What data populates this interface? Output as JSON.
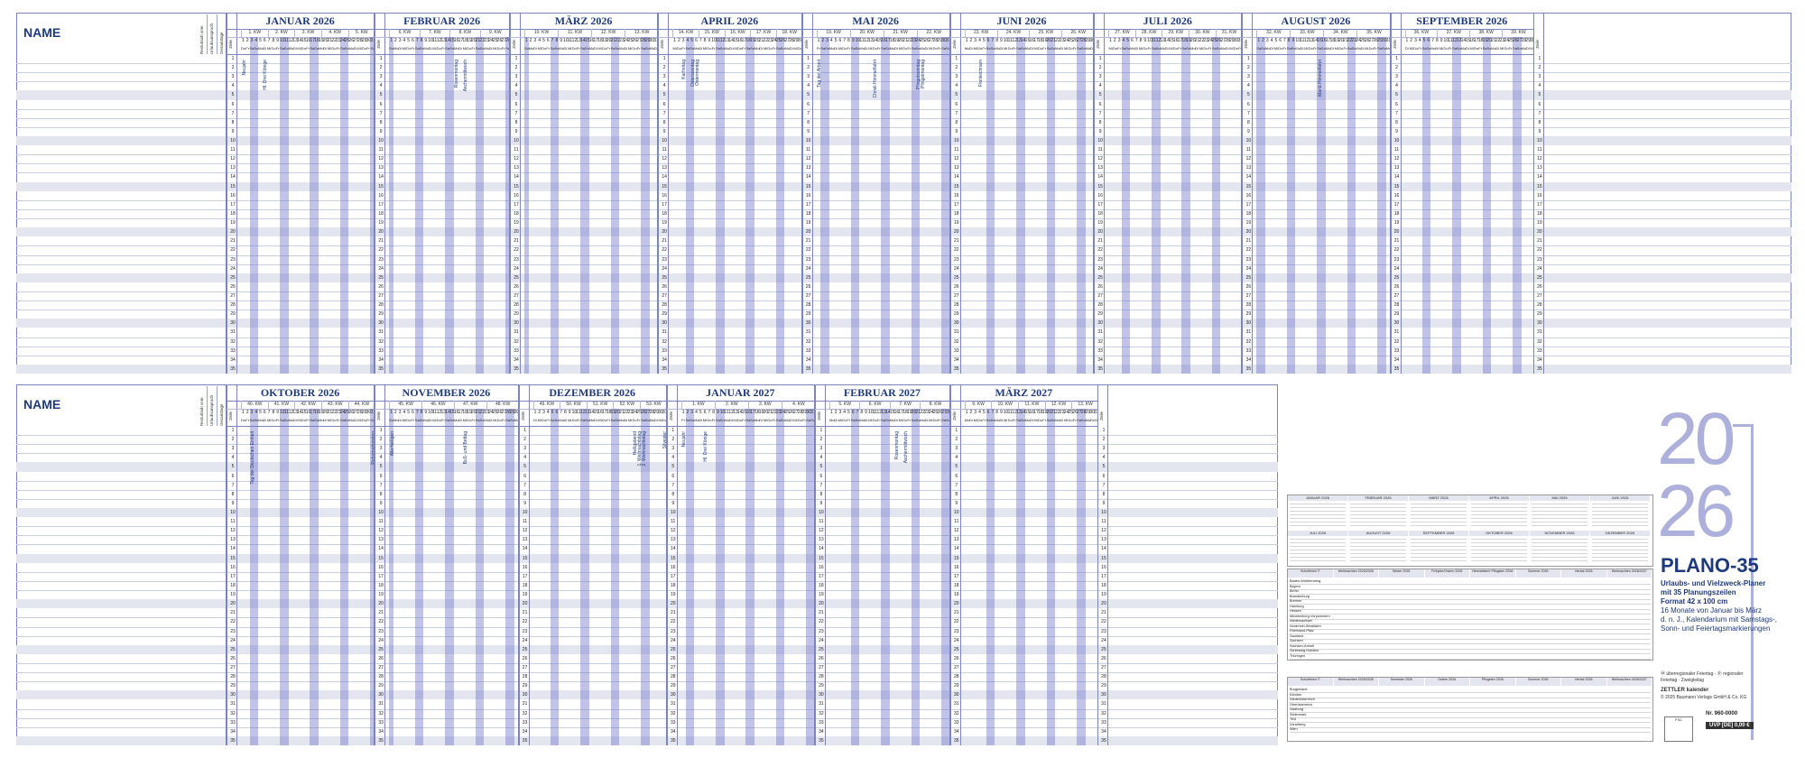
{
  "name_heading": "NAME",
  "side_labels": [
    "Resturlaub vom Vorjahr",
    "Urlaubsanspruch",
    "Gesamttage"
  ],
  "zeile_label": "Zeile",
  "rows": [
    "1",
    "2",
    "3",
    "4",
    "5",
    "6",
    "7",
    "8",
    "9",
    "10",
    "11",
    "12",
    "13",
    "14",
    "15",
    "16",
    "17",
    "18",
    "19",
    "20",
    "21",
    "22",
    "23",
    "24",
    "25",
    "26",
    "27",
    "28",
    "29",
    "30",
    "31",
    "32",
    "33",
    "34",
    "35"
  ],
  "top_months": [
    {
      "title": "JANUAR 2026",
      "kw": [
        "1. KW",
        "2. KW",
        "3. KW",
        "4. KW",
        "5. KW"
      ]
    },
    {
      "title": "FEBRUAR 2026",
      "kw": [
        "6. KW",
        "7. KW",
        "8. KW",
        "9. KW"
      ]
    },
    {
      "title": "MÄRZ 2026",
      "kw": [
        "10. KW",
        "11. KW",
        "12. KW",
        "13. KW"
      ]
    },
    {
      "title": "APRIL 2026",
      "kw": [
        "14. KW",
        "15. KW",
        "16. KW",
        "17. KW",
        "18. KW"
      ]
    },
    {
      "title": "MAI 2026",
      "kw": [
        "19. KW",
        "20. KW",
        "21. KW",
        "22. KW"
      ]
    },
    {
      "title": "JUNI 2026",
      "kw": [
        "23. KW",
        "24. KW",
        "25. KW",
        "26. KW"
      ]
    },
    {
      "title": "JULI 2026",
      "kw": [
        "27. KW",
        "28. KW",
        "29. KW",
        "30. KW",
        "31. KW"
      ]
    },
    {
      "title": "AUGUST 2026",
      "kw": [
        "32. KW",
        "33. KW",
        "34. KW",
        "35. KW"
      ]
    },
    {
      "title": "SEPTEMBER 2026",
      "kw": [
        "36. KW",
        "37. KW",
        "38. KW",
        "39. KW"
      ]
    }
  ],
  "bottom_months": [
    {
      "title": "OKTOBER 2026",
      "kw": [
        "40. KW",
        "41. KW",
        "42. KW",
        "43. KW",
        "44. KW"
      ]
    },
    {
      "title": "NOVEMBER 2026",
      "kw": [
        "45. KW",
        "46. KW",
        "47. KW",
        "48. KW"
      ]
    },
    {
      "title": "DEZEMBER 2026",
      "kw": [
        "49. KW",
        "50. KW",
        "51. KW",
        "52. KW",
        "53. KW"
      ]
    },
    {
      "title": "JANUAR 2027",
      "kw": [
        "1. KW",
        "2. KW",
        "3. KW",
        "4. KW"
      ]
    },
    {
      "title": "FEBRUAR 2027",
      "kw": [
        "5. KW",
        "6. KW",
        "7. KW",
        "8. KW"
      ]
    },
    {
      "title": "MÄRZ 2027",
      "kw": [
        "9. KW",
        "10. KW",
        "11. KW",
        "12. KW",
        "13. KW"
      ]
    }
  ],
  "weekday_abbr": [
    "Mo",
    "Di",
    "Mi",
    "Do",
    "Fr",
    "Sa",
    "So"
  ],
  "holidays": [
    "Neujahr",
    "Hl. Drei Könige",
    "Rosenmontag",
    "Aschermittwoch",
    "Karfreitag",
    "Ostersonntag",
    "Ostermontag",
    "Tag der Arbeit",
    "Christi Himmelfahrt",
    "Pfingstsonntag",
    "Pfingstmontag",
    "Fronleichnam",
    "Mariä Himmelfahrt",
    "Tag der Deutschen Einheit",
    "Reformationstag",
    "Allerheiligen",
    "Buß- und Bettag",
    "Heiligabend",
    "1. Weihnachtstag",
    "2. Weihnachtstag",
    "Silvester"
  ],
  "brand": {
    "year_top": "20",
    "year_bottom": "26",
    "title": "PLANO-35",
    "sub_lines": [
      "Urlaubs- und Vielzweck-Planer",
      "mit 35 Planungszeilen",
      "Format 42 x 100 cm",
      "16 Monate von Januar bis März",
      "d. n. J., Kalendarium mit Samstags-,",
      "Sonn- und Feiertagsmarkierungen"
    ],
    "legend": "Ⓜ überregionaler Feiertag · Ⓡ regionaler Feiertag · Zweigleitag",
    "publisher": "ZETTLER kalender",
    "copyright": "© 2025 Baumann Verlags GmbH & Co. KG",
    "order_no": "Nr. 960-0000",
    "price": "UVP [DE] 0,00 €"
  },
  "mini_cal_headers": [
    "JANUAR 2026",
    "FEBRUAR 2026",
    "MÄRZ 2026",
    "APRIL 2026",
    "MAI 2026",
    "JUNI 2026",
    "JULI 2026",
    "AUGUST 2026",
    "SEPTEMBER 2026",
    "OKTOBER 2026",
    "NOVEMBER 2026",
    "DEZEMBER 2026"
  ],
  "school_table_1_headers": [
    "Schulferien ©",
    "Weihnachten 2025/2026",
    "Winter 2026",
    "Frühjahr/Ostern 2026",
    "Himmelfahrt/ Pfingsten 2026",
    "Sommer 2026",
    "Herbst 2026",
    "Weihnachten 2026/2027"
  ],
  "school_table_1_rows": [
    "Baden-Württemberg",
    "Bayern",
    "Berlin",
    "Brandenburg",
    "Bremen",
    "Hamburg",
    "Hessen",
    "Mecklenburg-Vorpommern",
    "Niedersachsen",
    "Nordrhein-Westfalen",
    "Rheinland-Pfalz",
    "Saarland",
    "Sachsen",
    "Sachsen-Anhalt",
    "Schleswig-Holstein",
    "Thüringen"
  ],
  "school_table_2_headers": [
    "Schulferien ©",
    "Weihnachten 2025/2026",
    "Semester 2026",
    "Ostern 2026",
    "Pfingsten 2026",
    "Sommer 2026",
    "Herbst 2026",
    "Weihnachten 2026/2027"
  ],
  "school_table_2_rows": [
    "Burgenland",
    "Kärnten",
    "Niederösterreich",
    "Oberösterreich",
    "Salzburg",
    "Steiermark",
    "Tirol",
    "Vorarlberg",
    "Wien"
  ],
  "colors": {
    "accent": "#1e3a7a",
    "weekend": "#7b7fcf",
    "lines": "#7a86b8",
    "shade": "#e4e6ef",
    "year": "#aeb0dc"
  }
}
